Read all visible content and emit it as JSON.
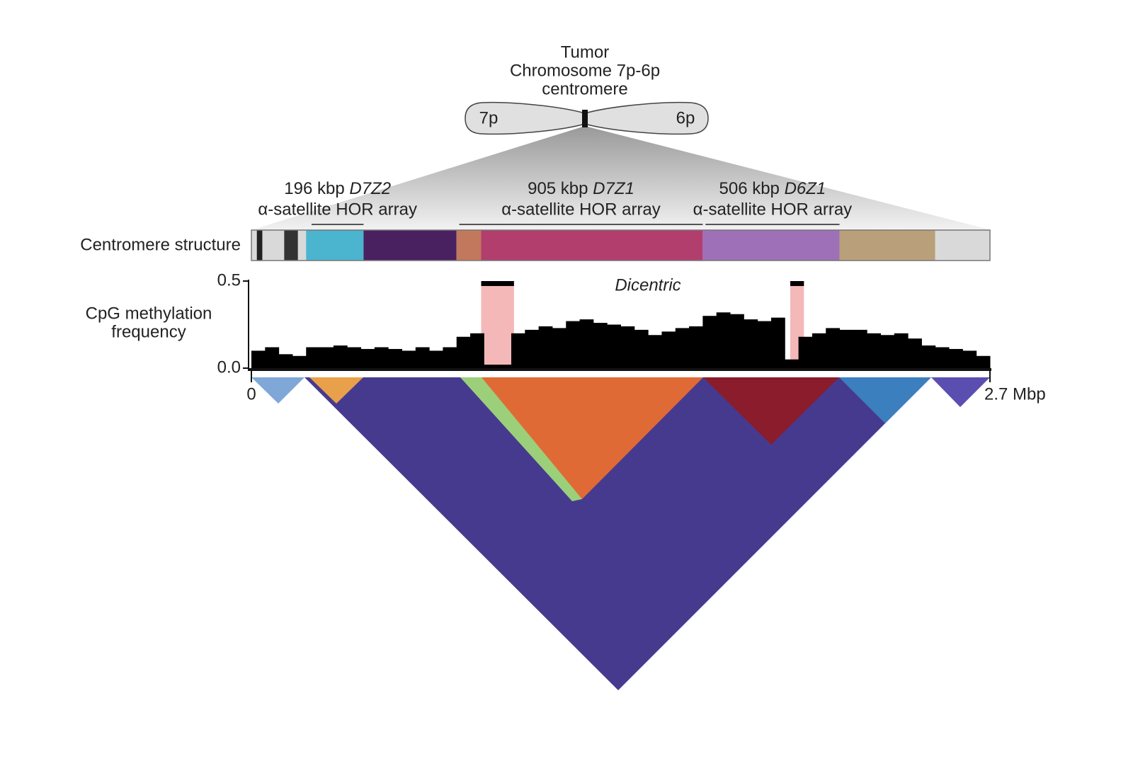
{
  "title_lines": [
    "Tumor",
    "Chromosome 7p-6p",
    "centromere"
  ],
  "chromosome": {
    "left_arm": "7p",
    "right_arm": "6p"
  },
  "chart_data": {
    "type": "histogram",
    "structure_label": "Centromere structure",
    "y_label_lines": [
      "CpG methylation",
      "frequency"
    ],
    "annotation": "Dicentric",
    "xlim": [
      0,
      2.7
    ],
    "xticks": [
      0,
      {
        "value": 2.7,
        "label": "2.7 Mbp"
      }
    ],
    "ylim": [
      0,
      0.5
    ],
    "yticks": [
      {
        "value": 0,
        "label": "0.0"
      },
      0.5
    ],
    "color": "#000000",
    "bins": [
      0,
      0.05,
      0.1,
      0.15,
      0.2,
      0.25,
      0.3,
      0.35,
      0.4,
      0.45,
      0.5,
      0.55,
      0.6,
      0.65,
      0.7,
      0.75,
      0.8,
      0.85,
      0.9,
      0.95,
      1,
      1.05,
      1.1,
      1.15,
      1.2,
      1.25,
      1.3,
      1.35,
      1.4,
      1.45,
      1.5,
      1.55,
      1.6,
      1.65,
      1.7,
      1.75,
      1.8,
      1.85,
      1.9,
      1.95,
      2,
      2.05,
      2.1,
      2.15,
      2.2,
      2.25,
      2.3,
      2.35,
      2.4,
      2.45,
      2.5,
      2.55,
      2.6,
      2.65,
      2.7
    ],
    "values": [
      0.1,
      0.12,
      0.08,
      0.07,
      0.12,
      0.12,
      0.13,
      0.12,
      0.11,
      0.12,
      0.11,
      0.1,
      0.12,
      0.1,
      0.12,
      0.18,
      0.2,
      0.02,
      0.02,
      0.2,
      0.22,
      0.24,
      0.23,
      0.27,
      0.28,
      0.26,
      0.25,
      0.24,
      0.22,
      0.19,
      0.21,
      0.23,
      0.24,
      0.3,
      0.32,
      0.31,
      0.28,
      0.27,
      0.29,
      0.05,
      0.18,
      0.2,
      0.23,
      0.22,
      0.22,
      0.2,
      0.19,
      0.2,
      0.17,
      0.13,
      0.12,
      0.11,
      0.1,
      0.07
    ],
    "highlight_color": "#f4b8b8",
    "highlights": [
      {
        "start": 0.84,
        "end": 0.96
      },
      {
        "start": 1.97,
        "end": 2.02
      }
    ],
    "structure": [
      {
        "start": 0,
        "end": 0.2,
        "color": "#d9d9d9"
      },
      {
        "start": 0.02,
        "end": 0.04,
        "color": "#222222"
      },
      {
        "start": 0.12,
        "end": 0.17,
        "color": "#333333"
      },
      {
        "start": 0.2,
        "end": 0.41,
        "color": "#4bb4cf"
      },
      {
        "start": 0.41,
        "end": 0.75,
        "color": "#4a2160"
      },
      {
        "start": 0.75,
        "end": 0.84,
        "color": "#c2785c"
      },
      {
        "start": 0.84,
        "end": 1.65,
        "color": "#b23e6e"
      },
      {
        "start": 1.65,
        "end": 2.15,
        "color": "#9e70b8"
      },
      {
        "start": 2.15,
        "end": 2.5,
        "color": "#b9a07a"
      },
      {
        "start": 2.5,
        "end": 2.7,
        "color": "#d9d9d9"
      }
    ],
    "arrays": [
      {
        "size": "196 kbp",
        "name": "D7Z2",
        "description": "α-satellite HOR array",
        "start": 0.22,
        "end": 0.41
      },
      {
        "size": "905 kbp",
        "name": "D7Z1",
        "description": "α-satellite HOR array",
        "start": 0.76,
        "end": 1.65
      },
      {
        "size": "506 kbp",
        "name": "D6Z1",
        "description": "α-satellite HOR array",
        "start": 1.66,
        "end": 2.15
      }
    ]
  }
}
